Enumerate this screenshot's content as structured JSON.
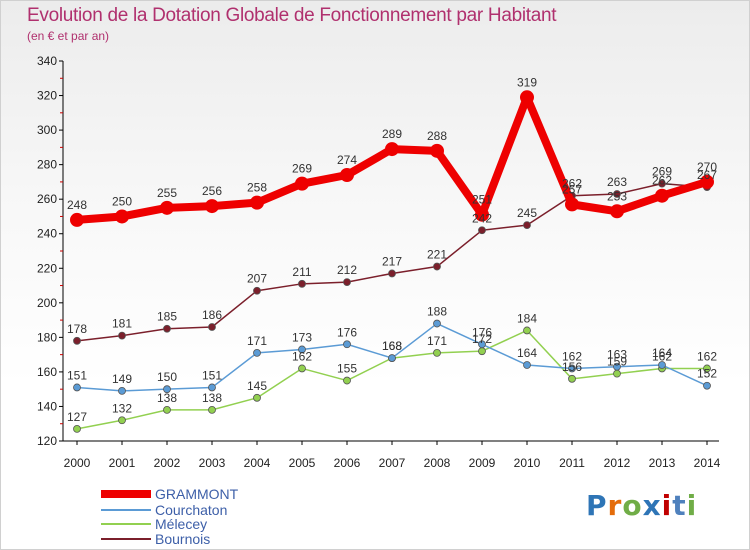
{
  "chart_data": {
    "type": "line",
    "title": "Evolution de la Dotation Globale de Fonctionnement par Habitant",
    "subtitle": "(en € et par an)",
    "xlabel": "",
    "ylabel": "",
    "x": [
      "2000",
      "2001",
      "2002",
      "2003",
      "2004",
      "2005",
      "2006",
      "2007",
      "2008",
      "2009",
      "2010",
      "2011",
      "2012",
      "2013",
      "2014"
    ],
    "ylim": [
      120,
      340
    ],
    "yticks": [
      120,
      140,
      160,
      180,
      200,
      220,
      240,
      260,
      280,
      300,
      320,
      340
    ],
    "grid": false,
    "legend_position": "bottom-left",
    "series": [
      {
        "name": "GRAMMONT",
        "color": "#ee0000",
        "values": [
          248,
          250,
          255,
          256,
          258,
          269,
          274,
          289,
          288,
          251,
          319,
          257,
          253,
          262,
          270
        ]
      },
      {
        "name": "Courchaton",
        "color": "#5b9bd5",
        "values": [
          151,
          149,
          150,
          151,
          171,
          173,
          176,
          168,
          188,
          176,
          164,
          162,
          163,
          164,
          152
        ]
      },
      {
        "name": "Mélecey",
        "color": "#92d050",
        "values": [
          127,
          132,
          138,
          138,
          145,
          162,
          155,
          168,
          171,
          172,
          184,
          156,
          159,
          162,
          162
        ]
      },
      {
        "name": "Bournois",
        "color": "#7b1f2b",
        "values": [
          178,
          181,
          185,
          186,
          207,
          211,
          212,
          217,
          221,
          242,
          245,
          262,
          263,
          269,
          267
        ]
      }
    ],
    "data_labels": [
      {
        "name": "GRAMMONT",
        "labels": [
          "248",
          "250",
          "255",
          "256",
          "258",
          "269",
          "274",
          "289",
          "288",
          "251",
          "319",
          "257",
          "253",
          "262",
          "270"
        ]
      },
      {
        "name": "Courchaton",
        "labels": [
          "151",
          "149",
          "150",
          "151",
          "171",
          "173",
          "176",
          "168",
          "188",
          "176",
          "164",
          "162",
          "163",
          "164",
          "152"
        ]
      },
      {
        "name": "Mélecey",
        "labels": [
          "127",
          "132",
          "138",
          "138",
          "145",
          "162",
          "155",
          "168",
          "171",
          "172",
          "184",
          "156",
          "159",
          "162",
          "162"
        ]
      },
      {
        "name": "Bournois",
        "labels": [
          "178",
          "181",
          "185",
          "186",
          "207",
          "211",
          "212",
          "217",
          "221",
          "242",
          "245",
          "262",
          "263",
          "269",
          "267"
        ]
      }
    ]
  },
  "logo": {
    "text": "Proxiti",
    "colors": [
      "#2e75b6",
      "#e46c0a",
      "#70ad47",
      "#2e75b6",
      "#c00000",
      "#4f81bd",
      "#70ad47"
    ]
  }
}
